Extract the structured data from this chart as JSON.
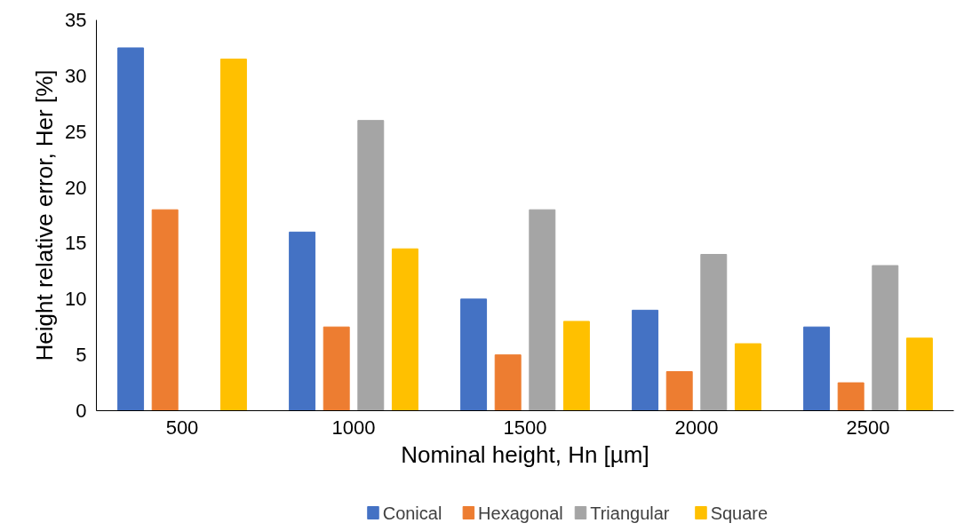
{
  "chart_data": {
    "type": "bar",
    "xlabel": "Nominal height, Hn [µm]",
    "ylabel": "Height relative error, Her [%]",
    "categories": [
      "500",
      "1000",
      "1500",
      "2000",
      "2500"
    ],
    "series": [
      {
        "name": "Conical",
        "color": "#4472c4",
        "values": [
          32.5,
          16,
          10,
          9,
          7.5
        ]
      },
      {
        "name": "Hexagonal",
        "color": "#ed7d31",
        "values": [
          18,
          7.5,
          5,
          3.5,
          2.5
        ]
      },
      {
        "name": "Triangular",
        "color": "#a5a5a5",
        "values": [
          null,
          26,
          18,
          14,
          13
        ]
      },
      {
        "name": "Square",
        "color": "#ffc000",
        "values": [
          31.5,
          14.5,
          8,
          6,
          6.5
        ]
      }
    ],
    "ylim": [
      0,
      35
    ],
    "yticks": [
      0,
      5,
      10,
      15,
      20,
      25,
      30,
      35
    ],
    "grid": false,
    "legend": "bottom"
  }
}
